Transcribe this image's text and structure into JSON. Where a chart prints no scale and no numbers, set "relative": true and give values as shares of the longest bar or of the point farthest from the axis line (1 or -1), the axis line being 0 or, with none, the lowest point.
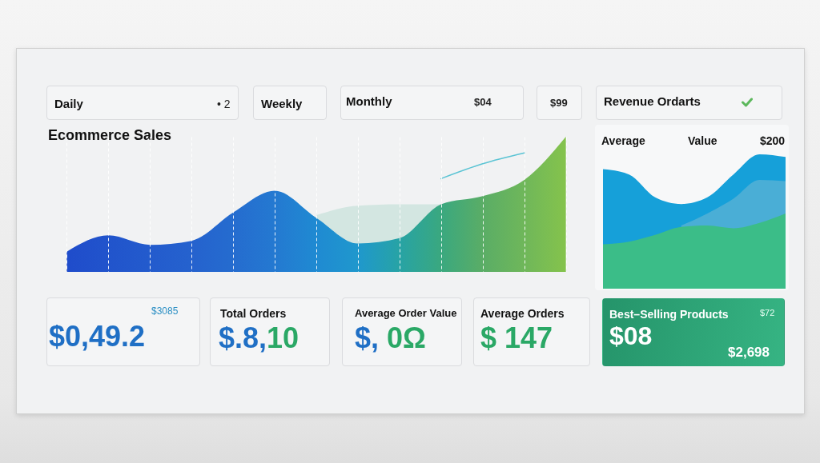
{
  "chart_data": [
    {
      "type": "other",
      "title": "Daily",
      "annotations": [
        "• 2"
      ]
    },
    {
      "type": "other",
      "title": "Weekly"
    },
    {
      "type": "other",
      "title": "Monthly",
      "annotations": [
        "$04"
      ]
    },
    {
      "type": "other",
      "annotations": [
        "$99"
      ]
    },
    {
      "type": "other",
      "title": "Revenue Ordarts"
    },
    {
      "type": "area",
      "title": "Ecommerce Sales",
      "relative": true,
      "grid": "x",
      "categories": [
        null,
        null,
        null,
        null,
        null,
        null,
        null,
        null,
        null,
        null,
        null,
        null,
        null
      ],
      "series": [
        {
          "color": "#d3e6e1",
          "values": [
            null,
            null,
            null,
            null,
            null,
            null,
            0.42,
            0.49,
            0.5,
            0.5,
            null,
            null,
            null
          ]
        },
        {
          "colors": [
            "#1f4ccb",
            "#2154cc",
            "#235bcd",
            "#2562ce",
            "#256ccf",
            "#2479d1",
            "#1f8ad2",
            "#1f98cd",
            "#27a3a5",
            "#3aa87f",
            "#5aad66",
            "#6fb75a",
            "#85c34c"
          ],
          "values": [
            0.15,
            0.27,
            0.2,
            0.23,
            0.44,
            0.6,
            0.4,
            0.21,
            0.25,
            0.5,
            0.56,
            0.68,
            1
          ]
        },
        {
          "type": "line",
          "color": "#5bc4d4",
          "values": [
            null,
            null,
            null,
            null,
            null,
            null,
            null,
            null,
            null,
            0.69,
            0.8,
            0.88,
            null
          ]
        }
      ]
    },
    {
      "type": "area",
      "title": "Average",
      "annotations": [
        "Value",
        "$200"
      ],
      "relative": true,
      "categories": [
        null,
        null,
        null,
        null,
        null,
        null,
        null,
        null
      ],
      "series": [
        {
          "color": "#16a0d9",
          "values": [
            0.89,
            0.85,
            0.68,
            0.63,
            0.68,
            0.85,
            1,
            0.98
          ]
        },
        {
          "color": "#4aaed6",
          "values": [
            null,
            null,
            null,
            0.47,
            0.56,
            0.67,
            0.81,
            0.8
          ]
        },
        {
          "color": "#3bbd88",
          "values": [
            0.33,
            0.35,
            0.4,
            0.46,
            0.47,
            0.45,
            0.49,
            0.56
          ]
        }
      ]
    },
    {
      "type": "other",
      "annotations": [
        "$3085",
        "$0,49.2"
      ]
    },
    {
      "type": "other",
      "title": "Total Orders",
      "annotations": [
        "$.8,10"
      ]
    },
    {
      "type": "other",
      "title": "Average Order Value",
      "annotations": [
        "$, 0Ω"
      ]
    },
    {
      "type": "other",
      "title": "Average Orders",
      "annotations": [
        "$ 147"
      ]
    },
    {
      "type": "other",
      "title": "Best–Selling Products",
      "annotations": [
        "$72",
        "$08",
        "$2,698"
      ]
    }
  ]
}
